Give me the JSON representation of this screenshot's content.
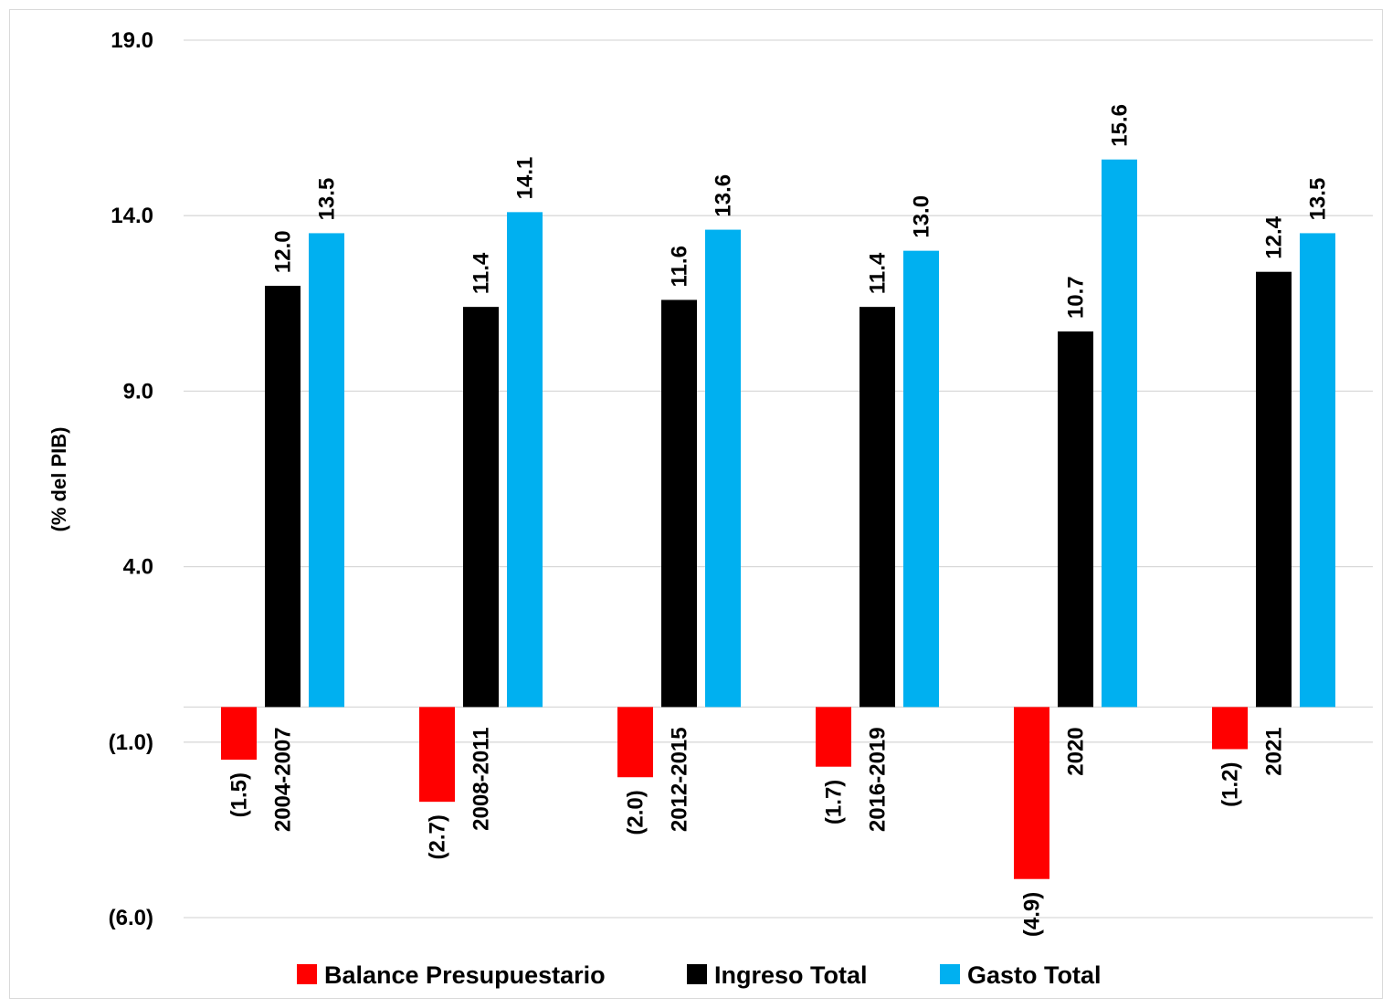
{
  "chart_data": {
    "type": "bar",
    "title": "",
    "xlabel": "",
    "ylabel": "(% del PIB)",
    "ylim": [
      -6.0,
      19.0
    ],
    "yticks": [
      19.0,
      14.0,
      9.0,
      4.0,
      -1.0,
      -6.0
    ],
    "ytick_labels": [
      "19.0",
      "14.0",
      "9.0",
      "4.0",
      "(1.0)",
      "(6.0)"
    ],
    "grid": true,
    "legend_position": "bottom",
    "categories": [
      "2004-2007",
      "2008-2011",
      "2012-2015",
      "2016-2019",
      "2020",
      "2021"
    ],
    "series": [
      {
        "name": "Balance Presupuestario",
        "color": "#ff0000",
        "values": [
          -1.5,
          -2.7,
          -2.0,
          -1.7,
          -4.9,
          -1.2
        ],
        "labels": [
          "(1.5)",
          "(2.7)",
          "(2.0)",
          "(1.7)",
          "(4.9)",
          "(1.2)"
        ]
      },
      {
        "name": "Ingreso Total",
        "color": "#000000",
        "values": [
          12.0,
          11.4,
          11.6,
          11.4,
          10.7,
          12.4
        ],
        "labels": [
          "12.0",
          "11.4",
          "11.6",
          "11.4",
          "10.7",
          "12.4"
        ]
      },
      {
        "name": "Gasto Total",
        "color": "#00b0f0",
        "values": [
          13.5,
          14.1,
          13.6,
          13.0,
          15.6,
          13.5
        ],
        "labels": [
          "13.5",
          "14.1",
          "13.6",
          "13.0",
          "15.6",
          "13.5"
        ]
      }
    ]
  }
}
